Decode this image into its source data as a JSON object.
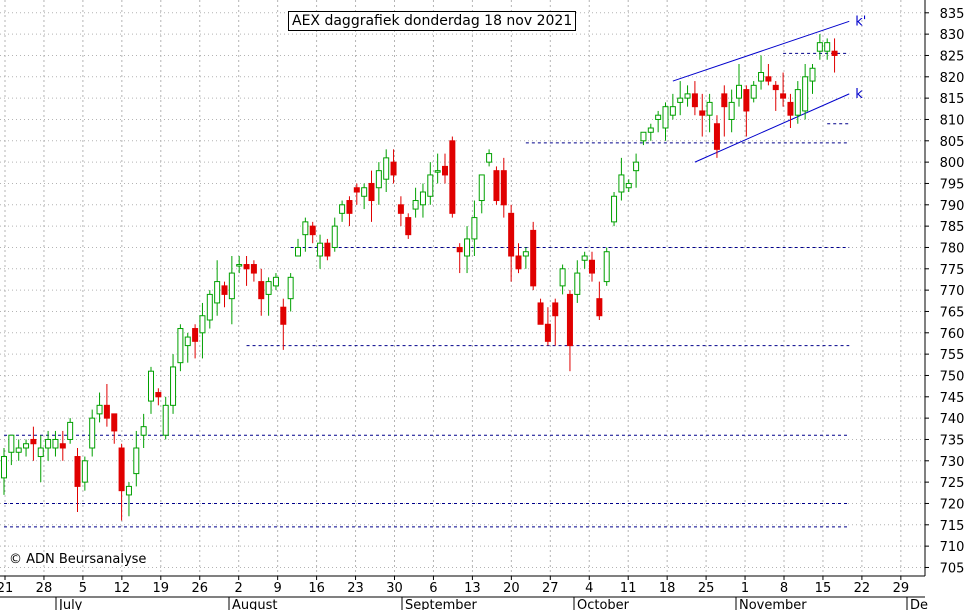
{
  "chart_data": {
    "type": "candlestick",
    "title": "AEX daggrafiek donderdag 18 nov 2021",
    "credit": "© ADN Beursanalyse",
    "ylim": [
      703,
      838
    ],
    "y_ticks": [
      705,
      710,
      715,
      720,
      725,
      730,
      735,
      740,
      745,
      750,
      755,
      760,
      765,
      770,
      775,
      780,
      785,
      790,
      795,
      800,
      805,
      810,
      815,
      820,
      825,
      830,
      835
    ],
    "x_tick_labels": [
      "21",
      "28",
      "5",
      "12",
      "19",
      "26",
      "2",
      "9",
      "16",
      "23",
      "30",
      "6",
      "13",
      "20",
      "27",
      "4",
      "11",
      "18",
      "25",
      "1",
      "8",
      "15",
      "22",
      "29"
    ],
    "month_labels": [
      "July",
      "August",
      "September",
      "October",
      "November",
      "De"
    ],
    "grid": true,
    "colors": {
      "up": "#00a000",
      "down": "#e00000",
      "lines": "#0000cc",
      "levels": "#00008b"
    },
    "candles": [
      [
        726,
        731,
        722,
        733
      ],
      [
        732,
        736,
        729,
        736
      ],
      [
        732,
        733,
        730,
        735
      ],
      [
        733,
        734,
        731,
        735
      ],
      [
        735,
        734,
        730,
        738
      ],
      [
        731,
        733,
        725,
        736
      ],
      [
        733,
        735,
        730,
        737
      ],
      [
        733,
        735,
        731,
        737
      ],
      [
        734,
        733,
        730,
        737
      ],
      [
        735,
        739,
        734,
        740
      ],
      [
        731,
        724,
        718,
        733
      ],
      [
        725,
        730,
        723,
        731
      ],
      [
        733,
        740,
        731,
        742
      ],
      [
        741,
        743,
        739,
        746
      ],
      [
        743,
        740,
        738,
        748
      ],
      [
        741,
        737,
        734,
        741
      ],
      [
        733,
        723,
        716,
        734
      ],
      [
        722,
        724,
        717,
        725
      ],
      [
        727,
        733,
        724,
        737
      ],
      [
        736,
        738,
        733,
        741
      ],
      [
        744,
        751,
        741,
        752
      ],
      [
        746,
        745,
        743,
        747
      ],
      [
        736,
        743,
        735,
        745
      ],
      [
        743,
        752,
        741,
        755
      ],
      [
        753,
        761,
        751,
        762
      ],
      [
        757,
        759,
        753,
        760
      ],
      [
        761,
        758,
        754,
        762
      ],
      [
        760,
        764,
        754,
        767
      ],
      [
        763,
        769,
        761,
        770
      ],
      [
        767,
        772,
        764,
        777
      ],
      [
        771,
        769,
        766,
        772
      ],
      [
        768,
        774,
        762,
        778
      ],
      [
        776,
        776,
        774,
        778
      ],
      [
        776,
        775,
        771,
        778
      ],
      [
        776,
        774,
        772,
        777
      ],
      [
        772,
        768,
        764,
        775
      ],
      [
        769,
        772,
        764,
        773
      ],
      [
        771,
        773,
        770,
        774
      ],
      [
        766,
        762,
        756,
        768
      ],
      [
        768,
        773,
        765,
        774
      ],
      [
        778,
        780,
        778,
        782
      ],
      [
        783,
        786,
        779,
        787
      ],
      [
        785,
        783,
        781,
        786
      ],
      [
        778,
        781,
        775,
        783
      ],
      [
        781,
        778,
        777,
        782
      ],
      [
        780,
        785,
        779,
        787
      ],
      [
        788,
        790,
        786,
        791
      ],
      [
        791,
        788,
        785,
        792
      ],
      [
        794,
        793,
        790,
        795
      ],
      [
        792,
        794,
        789,
        795
      ],
      [
        795,
        791,
        786,
        798
      ],
      [
        794,
        798,
        790,
        800
      ],
      [
        796,
        801,
        793,
        803
      ],
      [
        800,
        797,
        795,
        803
      ],
      [
        790,
        788,
        785,
        792
      ],
      [
        787,
        783,
        782,
        788
      ],
      [
        789,
        791,
        787,
        794
      ],
      [
        790,
        793,
        787,
        795
      ],
      [
        792,
        797,
        790,
        800
      ],
      [
        798,
        798,
        795,
        802
      ],
      [
        799,
        797,
        795,
        802
      ],
      [
        805,
        788,
        787,
        806
      ],
      [
        780,
        779,
        774,
        781
      ],
      [
        778,
        782,
        774,
        785
      ],
      [
        782,
        787,
        778,
        791
      ],
      [
        791,
        797,
        788,
        797
      ],
      [
        800,
        802,
        799,
        803
      ],
      [
        798,
        791,
        790,
        799
      ],
      [
        798,
        790,
        787,
        801
      ],
      [
        788,
        778,
        772,
        790
      ],
      [
        778,
        775,
        774,
        781
      ],
      [
        778,
        779,
        775,
        780
      ],
      [
        784,
        771,
        770,
        786
      ],
      [
        767,
        762,
        762,
        768
      ],
      [
        762,
        758,
        757,
        766
      ],
      [
        767,
        764,
        757,
        768
      ],
      [
        771,
        775,
        769,
        776
      ],
      [
        769,
        757,
        751,
        770
      ],
      [
        769,
        774,
        767,
        777
      ],
      [
        777,
        778,
        775,
        779
      ],
      [
        777,
        774,
        772,
        779
      ],
      [
        768,
        764,
        763,
        772
      ],
      [
        772,
        779,
        771,
        780
      ],
      [
        786,
        792,
        785,
        793
      ],
      [
        793,
        797,
        791,
        801
      ],
      [
        794,
        795,
        793,
        796
      ],
      [
        798,
        800,
        794,
        802
      ],
      [
        805,
        807,
        804,
        806
      ],
      [
        807,
        808,
        805,
        809
      ],
      [
        810,
        811,
        807,
        812
      ],
      [
        808,
        813,
        805,
        814
      ],
      [
        811,
        813,
        810,
        816
      ],
      [
        814,
        815,
        811,
        819
      ],
      [
        815,
        816,
        813,
        818
      ],
      [
        816,
        813,
        811,
        819
      ],
      [
        812,
        811,
        806,
        816
      ],
      [
        811,
        814,
        807,
        816
      ],
      [
        809,
        803,
        801,
        811
      ],
      [
        816,
        813,
        806,
        818
      ],
      [
        810,
        814,
        807,
        817
      ],
      [
        815,
        818,
        813,
        823
      ],
      [
        817,
        812,
        806,
        818
      ],
      [
        815,
        818,
        814,
        819
      ],
      [
        819,
        821,
        817,
        825
      ],
      [
        820,
        819,
        818,
        823
      ],
      [
        818,
        817,
        812,
        819
      ],
      [
        816,
        815,
        813,
        821
      ],
      [
        814,
        811,
        808,
        816
      ],
      [
        811,
        817,
        809,
        819
      ],
      [
        812,
        820,
        810,
        823
      ],
      [
        819,
        822,
        816,
        823
      ],
      [
        826,
        828,
        824,
        830
      ],
      [
        826,
        828,
        824,
        829
      ],
      [
        826,
        825,
        821,
        829
      ]
    ],
    "support_levels": [
      {
        "value": 825.5,
        "from": 106,
        "to": 115
      },
      {
        "value": 809,
        "from": 112,
        "to": 115
      },
      {
        "value": 804.5,
        "from": 71,
        "to": 115
      },
      {
        "value": 780,
        "from": 39,
        "to": 115
      },
      {
        "value": 757,
        "from": 33,
        "to": 115
      },
      {
        "value": 736,
        "from": 0,
        "to": 115
      },
      {
        "value": 720,
        "from": 0,
        "to": 115
      },
      {
        "value": 714.5,
        "from": 0,
        "to": 115
      }
    ],
    "trendlines": [
      {
        "name": "k'",
        "from": [
          91,
          819
        ],
        "to": [
          115,
          833
        ]
      },
      {
        "name": "k",
        "from": [
          94,
          800
        ],
        "to": [
          115,
          816
        ]
      }
    ]
  }
}
